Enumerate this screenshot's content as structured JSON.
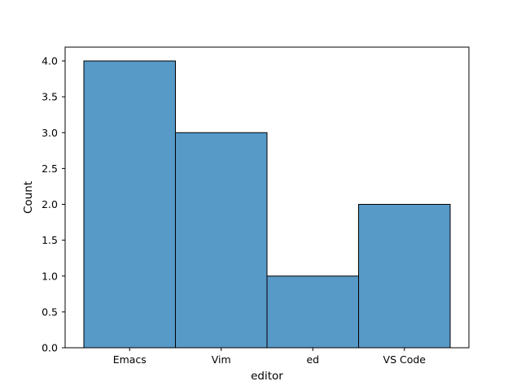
{
  "chart_data": {
    "type": "bar",
    "title": "",
    "xlabel": "editor",
    "ylabel": "Count",
    "categories": [
      "Emacs",
      "Vim",
      "ed",
      "VS Code"
    ],
    "values": [
      4,
      3,
      1,
      2
    ],
    "ylim": [
      0,
      4.0
    ],
    "yticks": [
      "0.0",
      "0.5",
      "1.0",
      "1.5",
      "2.0",
      "2.5",
      "3.0",
      "3.5",
      "4.0"
    ],
    "bar_color": "#5799c7",
    "edge_color": "#000000",
    "grid": false,
    "legend": "none"
  }
}
